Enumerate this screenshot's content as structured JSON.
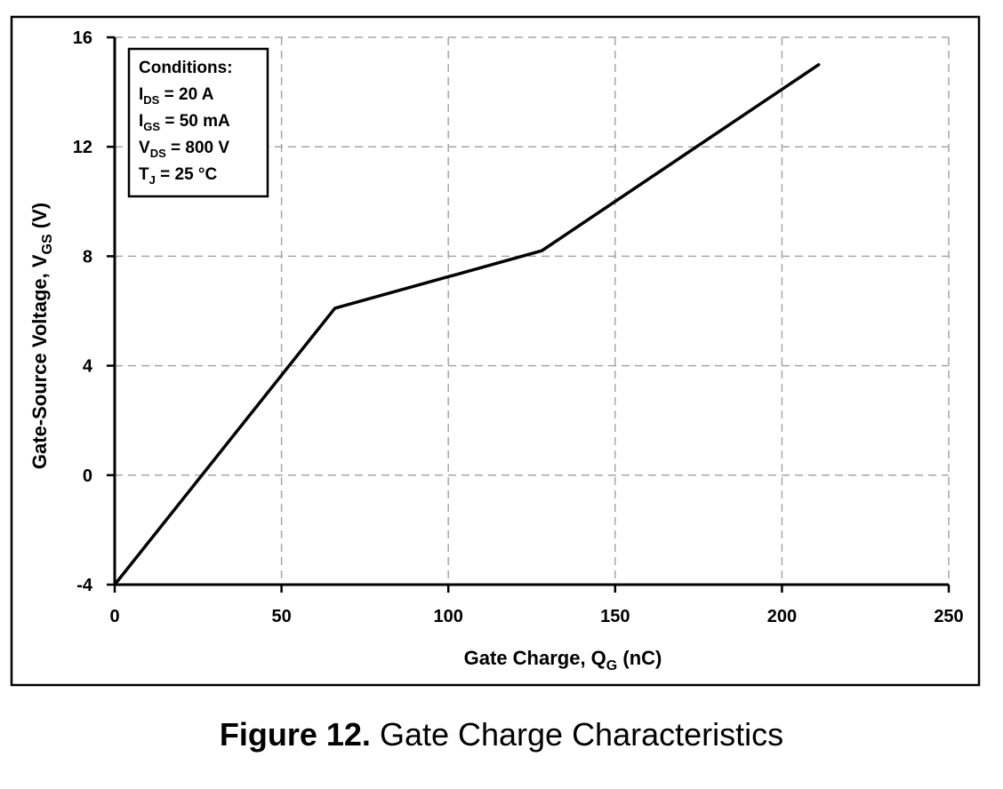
{
  "chart_data": {
    "type": "line",
    "xlabel": {
      "main": "Gate Charge, Q",
      "sub": "G",
      "tail": " (nC)"
    },
    "ylabel": {
      "main": "Gate-Source Voltage, V",
      "sub": "GS",
      "tail": " (V)"
    },
    "xlim": [
      0,
      250
    ],
    "ylim": [
      -4,
      16
    ],
    "xticks": [
      0,
      50,
      100,
      150,
      200,
      250
    ],
    "yticks": [
      -4,
      0,
      4,
      8,
      12,
      16
    ],
    "grid": true,
    "series": [
      {
        "x": [
          0,
          66,
          128,
          211
        ],
        "y": [
          -4,
          6.1,
          8.2,
          15.0
        ]
      }
    ],
    "conditions": {
      "title": "Conditions:",
      "lines": [
        {
          "main": "I",
          "sub": "DS",
          "tail": " = 20 A"
        },
        {
          "main": "I",
          "sub": "GS",
          "tail": " = 50 mA"
        },
        {
          "main": "V",
          "sub": "DS",
          "tail": " = 800 V"
        },
        {
          "main": "T",
          "sub": "J",
          "tail": " = 25 °C"
        }
      ]
    }
  },
  "caption": {
    "number": "Figure 12.",
    "text": " Gate Charge Characteristics"
  },
  "colors": {
    "line": "#000000",
    "grid": "#a6a6a6",
    "axis": "#000000",
    "frame": "#000000"
  }
}
